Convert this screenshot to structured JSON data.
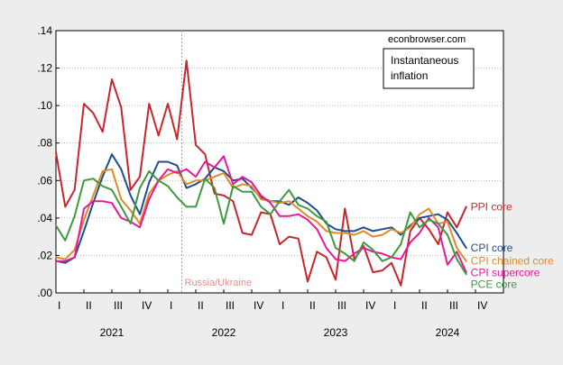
{
  "chart_data": {
    "type": "line",
    "source_text": "econbrowser.com",
    "legend_box": {
      "line1": "Instantaneous",
      "line2": "inflation"
    },
    "event": {
      "label": "Russia/Ukraine",
      "x": 2022.125,
      "color": "#f08a8a"
    },
    "ylim": [
      0,
      0.14
    ],
    "yticks": [
      {
        "v": 0.0,
        "label": ".00"
      },
      {
        "v": 0.02,
        "label": ".02"
      },
      {
        "v": 0.04,
        "label": ".04"
      },
      {
        "v": 0.06,
        "label": ".06"
      },
      {
        "v": 0.08,
        "label": ".08"
      },
      {
        "v": 0.1,
        "label": ".10"
      },
      {
        "v": 0.12,
        "label": ".12"
      },
      {
        "v": 0.14,
        "label": ".14"
      }
    ],
    "xlim": [
      2021.0,
      2025.0
    ],
    "quarter_labels": [
      "I",
      "II",
      "III",
      "IV",
      "I",
      "II",
      "III",
      "IV",
      "I",
      "II",
      "III",
      "IV",
      "I",
      "II",
      "III",
      "IV"
    ],
    "years": [
      {
        "label": "2021",
        "x": 2021.5
      },
      {
        "label": "2022",
        "x": 2022.5
      },
      {
        "label": "2023",
        "x": 2023.5
      },
      {
        "label": "2024",
        "x": 2024.5
      }
    ],
    "start": 2021.0,
    "step": 0.0833333,
    "series": [
      {
        "name": "PPI core",
        "color": "#c8262c",
        "values": [
          0.075,
          0.046,
          0.055,
          0.101,
          0.096,
          0.086,
          0.114,
          0.099,
          0.055,
          0.062,
          0.101,
          0.084,
          0.101,
          0.082,
          0.124,
          0.079,
          0.074,
          0.053,
          0.052,
          0.049,
          0.032,
          0.031,
          0.043,
          0.042,
          0.026,
          0.03,
          0.029,
          0.006,
          0.022,
          0.019,
          0.007,
          0.045,
          0.018,
          0.025,
          0.011,
          0.012,
          0.016,
          0.004,
          0.033,
          0.04,
          0.034,
          0.026,
          0.043,
          0.035,
          0.046
        ]
      },
      {
        "name": "CPI core",
        "color": "#1f4e8c",
        "values": [
          0.017,
          0.016,
          0.019,
          0.033,
          0.048,
          0.062,
          0.074,
          0.066,
          0.052,
          0.042,
          0.059,
          0.07,
          0.07,
          0.068,
          0.056,
          0.058,
          0.061,
          0.067,
          0.065,
          0.06,
          0.061,
          0.056,
          0.051,
          0.049,
          0.049,
          0.047,
          0.051,
          0.048,
          0.044,
          0.037,
          0.034,
          0.033,
          0.033,
          0.035,
          0.033,
          0.034,
          0.035,
          0.031,
          0.036,
          0.04,
          0.041,
          0.042,
          0.039,
          0.032,
          0.024
        ]
      },
      {
        "name": "CPI chained core",
        "color": "#e08a2a",
        "values": [
          0.019,
          0.018,
          0.023,
          0.039,
          0.052,
          0.065,
          0.066,
          0.05,
          0.044,
          0.037,
          0.053,
          0.06,
          0.063,
          0.065,
          0.058,
          0.06,
          0.06,
          0.062,
          0.064,
          0.056,
          0.058,
          0.057,
          0.05,
          0.049,
          0.048,
          0.049,
          0.045,
          0.041,
          0.038,
          0.033,
          0.032,
          0.032,
          0.031,
          0.033,
          0.03,
          0.031,
          0.034,
          0.032,
          0.035,
          0.042,
          0.045,
          0.037,
          0.038,
          0.024,
          0.017
        ]
      },
      {
        "name": "CPI supercore",
        "color": "#e8189a",
        "values": [
          0.017,
          0.017,
          0.019,
          0.045,
          0.049,
          0.049,
          0.048,
          0.04,
          0.038,
          0.035,
          0.05,
          0.06,
          0.066,
          0.064,
          0.066,
          0.062,
          0.07,
          0.067,
          0.073,
          0.058,
          0.062,
          0.059,
          0.052,
          0.048,
          0.041,
          0.041,
          0.042,
          0.039,
          0.034,
          0.024,
          0.018,
          0.017,
          0.021,
          0.024,
          0.022,
          0.021,
          0.019,
          0.018,
          0.027,
          0.032,
          0.04,
          0.035,
          0.015,
          0.022,
          0.011
        ]
      },
      {
        "name": "PCE core",
        "color": "#3e9a3e",
        "values": [
          0.036,
          0.028,
          0.041,
          0.06,
          0.061,
          0.057,
          0.055,
          0.046,
          0.037,
          0.056,
          0.065,
          0.06,
          0.057,
          0.051,
          0.046,
          0.046,
          0.061,
          0.056,
          0.037,
          0.057,
          0.054,
          0.054,
          0.046,
          0.042,
          0.049,
          0.055,
          0.047,
          0.045,
          0.041,
          0.038,
          0.024,
          0.021,
          0.017,
          0.027,
          0.023,
          0.017,
          0.019,
          0.026,
          0.043,
          0.035,
          0.039,
          0.037,
          0.031,
          0.018,
          0.01
        ]
      }
    ]
  }
}
